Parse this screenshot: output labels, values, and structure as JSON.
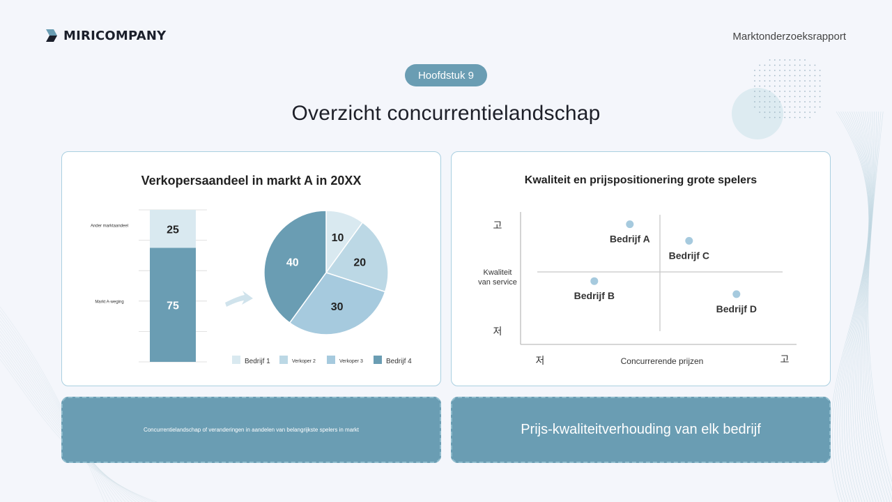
{
  "header": {
    "brand": "MIRICOMPANY",
    "report_label": "Marktonderzoeksrapport",
    "chapter": "Hoofdstuk 9",
    "title": "Overzicht concurrentielandschap"
  },
  "colors": {
    "accent": "#6a9db3",
    "bar_light": "#d9e9f0",
    "bar_dark": "#6a9db3",
    "pie": [
      "#d9e9f0",
      "#bcd8e5",
      "#a6cade",
      "#6a9db3"
    ]
  },
  "chart_data": [
    {
      "type": "bar",
      "stacked": true,
      "title": "Verkopersaandeel in markt A in 20XX",
      "categories": [
        "Markt A-weging",
        "Ander marktaandeel"
      ],
      "values": [
        75,
        25
      ],
      "ylim": [
        0,
        100
      ]
    },
    {
      "type": "pie",
      "title": "",
      "labels": [
        "Bedrijf 1",
        "Verkoper 2",
        "Verkoper 3",
        "Bedrijf 4"
      ],
      "values": [
        10,
        20,
        30,
        40
      ],
      "legend": "bottom"
    },
    {
      "type": "scatter",
      "title": "Kwaliteit en prijspositionering grote spelers",
      "xlabel": "Concurrerende prijzen",
      "ylabel": "Kwaliteit van service",
      "ylabel_lines": [
        "Kwaliteit",
        "van service"
      ],
      "x_low": "저",
      "x_high": "고",
      "y_low": "저",
      "y_high": "고",
      "xlim": [
        0,
        10
      ],
      "ylim": [
        0,
        10
      ],
      "points": [
        {
          "label": "Bedrijf A",
          "x": 3.7,
          "y": 9.2
        },
        {
          "label": "Bedrijf C",
          "x": 6.2,
          "y": 7.8
        },
        {
          "label": "Bedrijf B",
          "x": 2.2,
          "y": 4.4
        },
        {
          "label": "Bedrijf D",
          "x": 8.2,
          "y": 3.3
        }
      ]
    }
  ],
  "captions": {
    "left": "Concurrentielandschap of veranderingen in aandelen van belangrijkste spelers in markt",
    "right": "Prijs-kwaliteitverhouding van elk bedrijf"
  }
}
